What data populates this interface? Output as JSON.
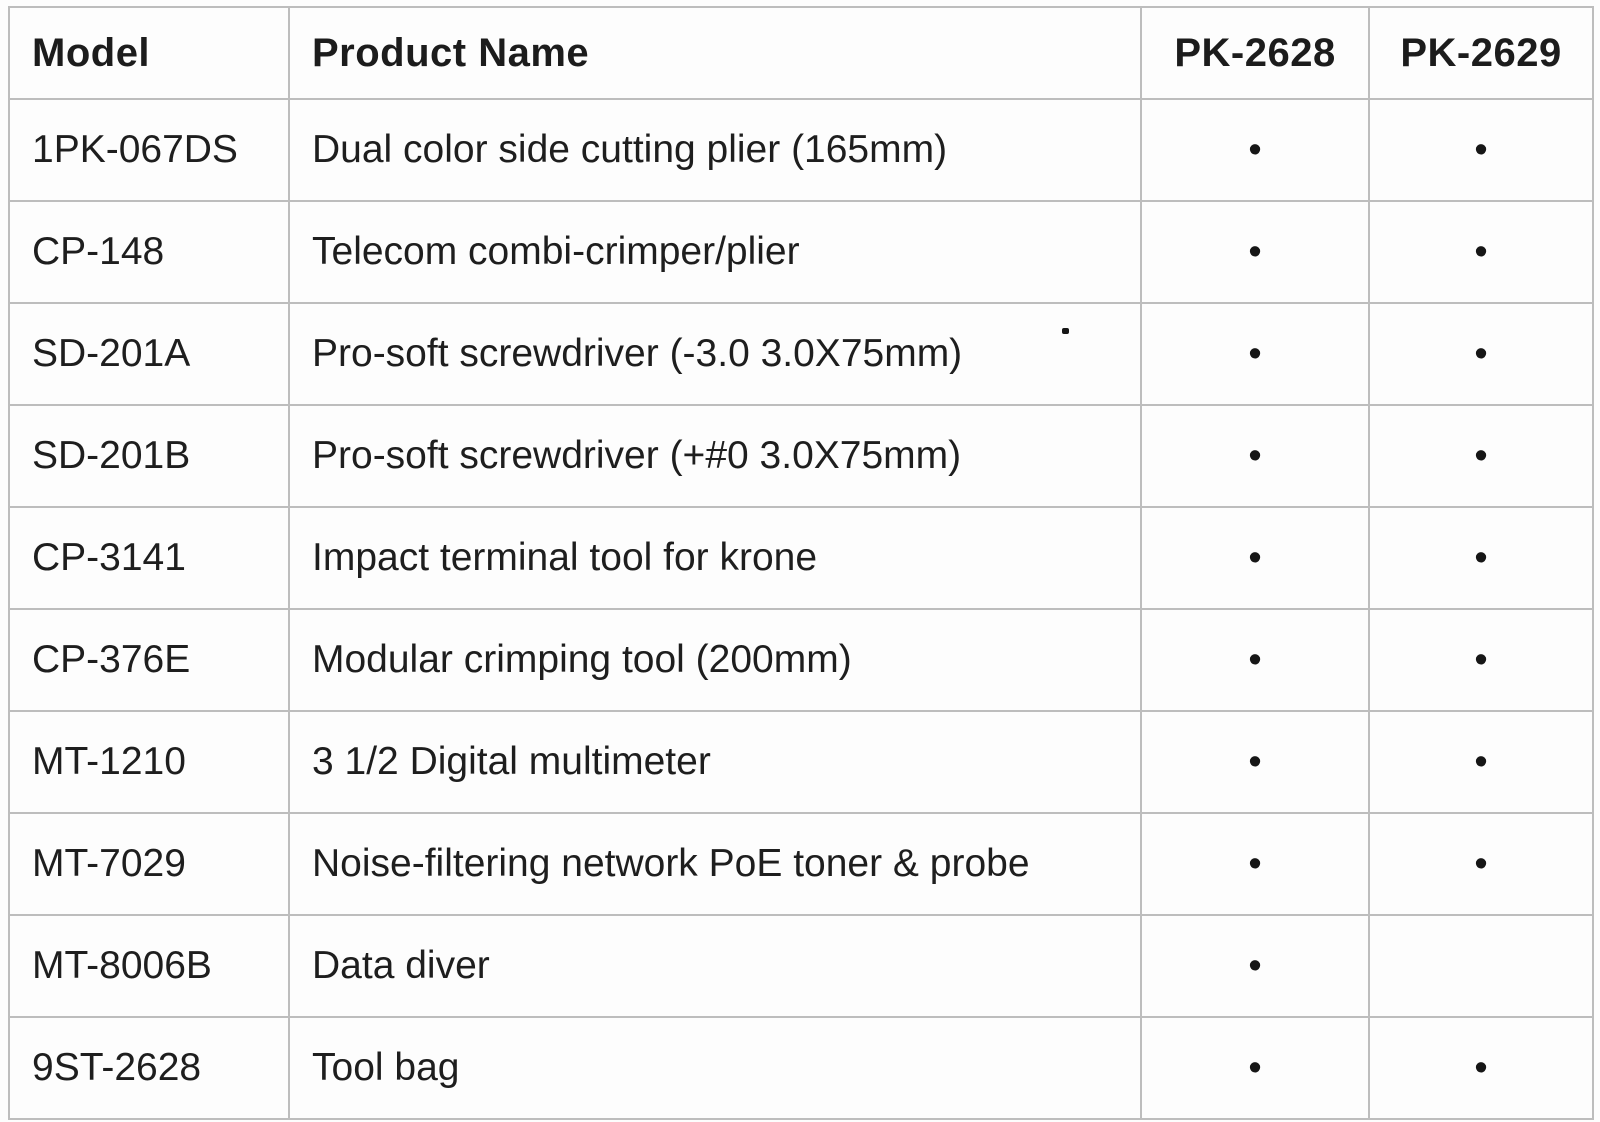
{
  "table": {
    "columns": [
      "Model",
      "Product Name",
      "PK-2628",
      "PK-2629"
    ],
    "included_marker": "•",
    "rows": [
      {
        "model": "1PK-067DS",
        "name": "Dual color side cutting plier (165mm)",
        "pk2628": true,
        "pk2629": true
      },
      {
        "model": "CP-148",
        "name": "Telecom combi-crimper/plier",
        "pk2628": true,
        "pk2629": true
      },
      {
        "model": "SD-201A",
        "name": "Pro-soft screwdriver (-3.0 3.0X75mm)",
        "pk2628": true,
        "pk2629": true
      },
      {
        "model": "SD-201B",
        "name": "Pro-soft screwdriver (+#0 3.0X75mm)",
        "pk2628": true,
        "pk2629": true
      },
      {
        "model": "CP-3141",
        "name": "Impact terminal tool for krone",
        "pk2628": true,
        "pk2629": true
      },
      {
        "model": "CP-376E",
        "name": "Modular crimping tool (200mm)",
        "pk2628": true,
        "pk2629": true
      },
      {
        "model": "MT-1210",
        "name": "3 1/2 Digital multimeter",
        "pk2628": true,
        "pk2629": true
      },
      {
        "model": "MT-7029",
        "name": "Noise-filtering network PoE toner & probe",
        "pk2628": true,
        "pk2629": true
      },
      {
        "model": "MT-8006B",
        "name": "Data diver",
        "pk2628": true,
        "pk2629": false
      },
      {
        "model": "9ST-2628",
        "name": "Tool bag",
        "pk2628": true,
        "pk2629": true
      }
    ]
  },
  "colors": {
    "background": "#fdfdfd",
    "border": "#bdbdbd",
    "text": "#1e1e1e",
    "marker": "#161616"
  }
}
